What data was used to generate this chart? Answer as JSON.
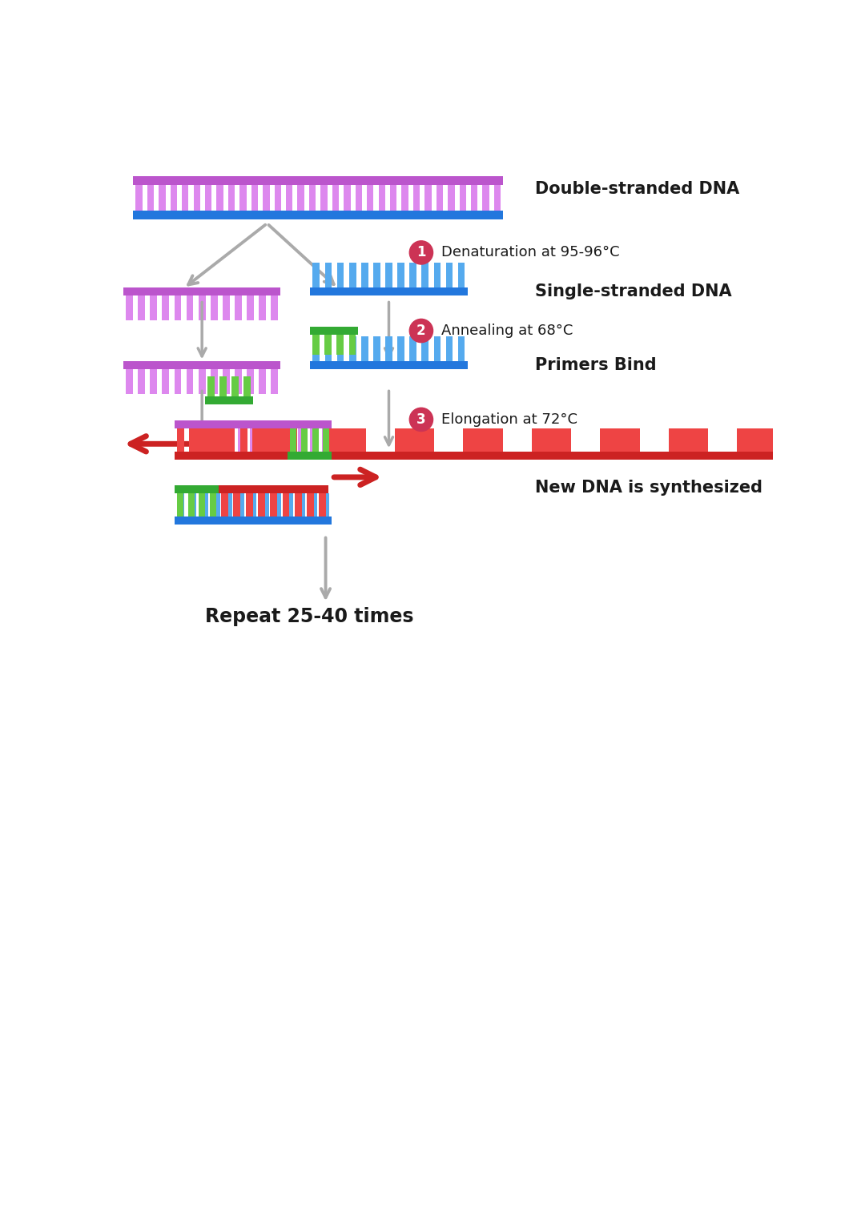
{
  "bg_color": "#ffffff",
  "text_color": "#1a1a1a",
  "gray_arrow_color": "#aaaaaa",
  "step_circle_color": "#cc3355",
  "step_circle_text": "#ffffff",
  "purple_bar": "#bb55cc",
  "purple_teeth": "#dd88ee",
  "blue_bar": "#2277dd",
  "blue_teeth": "#55aaee",
  "green_bar": "#33aa33",
  "green_teeth": "#66cc44",
  "red_bar": "#cc2222",
  "red_teeth": "#ee4444",
  "labels": {
    "double_strand": "Double-stranded DNA",
    "step1": "Denaturation at 95-96°C",
    "single_strand": "Single-stranded DNA",
    "step2": "Annealing at 68°C",
    "primers_bind": "Primers Bind",
    "step3": "Elongation at 72°C",
    "new_dna": "New DNA is synthesized",
    "repeat": "Repeat 25-40 times"
  },
  "fig_width": 10.75,
  "fig_height": 15.36
}
